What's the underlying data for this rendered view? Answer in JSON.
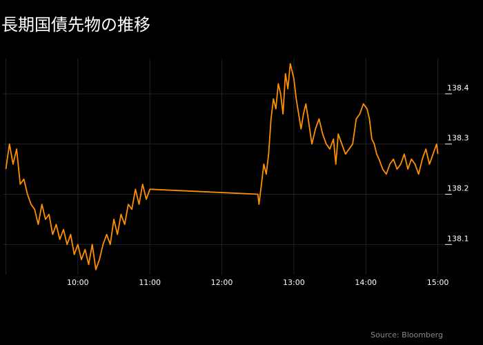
{
  "title": "長期国債先物の推移",
  "source": "Source: Bloomberg",
  "colors": {
    "background": "#000000",
    "line": "#ff9100",
    "grid": "#222222",
    "text": "#ffffff",
    "source": "#8a8a8a"
  },
  "chart_data": {
    "type": "line",
    "title": "長期国債先物の推移",
    "xlabel": "",
    "ylabel": "",
    "grid": true,
    "legend": "none",
    "x_ticks": [
      "10:00",
      "11:00",
      "12:00",
      "13:00",
      "14:00",
      "15:00"
    ],
    "y_ticks": [
      138.1,
      138.2,
      138.3,
      138.4
    ],
    "xlim": [
      "08:58",
      "15:06"
    ],
    "ylim": [
      138.04,
      138.47
    ],
    "series": [
      {
        "x": [
          "09:00",
          "09:03",
          "09:06",
          "09:09",
          "09:12",
          "09:15",
          "09:18",
          "09:21",
          "09:24",
          "09:27",
          "09:30",
          "09:33",
          "09:36",
          "09:39",
          "09:42",
          "09:45",
          "09:48",
          "09:51",
          "09:54",
          "09:57",
          "10:00",
          "10:03",
          "10:06",
          "10:09",
          "10:12",
          "10:15",
          "10:18",
          "10:21",
          "10:24",
          "10:27",
          "10:30",
          "10:33",
          "10:36",
          "10:39",
          "10:42",
          "10:45",
          "10:48",
          "10:51",
          "10:54",
          "10:57",
          "11:00",
          "11:01",
          "12:30",
          "12:31",
          "12:33",
          "12:35",
          "12:37",
          "12:39",
          "12:41",
          "12:43",
          "12:45",
          "12:47",
          "12:49",
          "12:51",
          "12:53",
          "12:55",
          "12:57",
          "13:00",
          "13:02",
          "13:04",
          "13:06",
          "13:08",
          "13:10",
          "13:12",
          "13:15",
          "13:18",
          "13:21",
          "13:24",
          "13:27",
          "13:30",
          "13:33",
          "13:35",
          "13:37",
          "13:40",
          "13:43",
          "13:46",
          "13:49",
          "13:52",
          "13:55",
          "13:58",
          "14:01",
          "14:03",
          "14:05",
          "14:07",
          "14:09",
          "14:11",
          "14:14",
          "14:17",
          "14:20",
          "14:23",
          "14:26",
          "14:29",
          "14:32",
          "14:35",
          "14:38",
          "14:41",
          "14:44",
          "14:47",
          "14:50",
          "14:53",
          "14:56",
          "14:59",
          "15:00"
        ],
        "values": [
          138.25,
          138.3,
          138.26,
          138.29,
          138.22,
          138.23,
          138.2,
          138.18,
          138.17,
          138.14,
          138.18,
          138.15,
          138.16,
          138.12,
          138.14,
          138.11,
          138.13,
          138.1,
          138.12,
          138.08,
          138.1,
          138.07,
          138.09,
          138.06,
          138.1,
          138.05,
          138.07,
          138.1,
          138.12,
          138.1,
          138.15,
          138.12,
          138.16,
          138.14,
          138.18,
          138.17,
          138.21,
          138.18,
          138.22,
          138.19,
          138.21,
          138.21,
          138.2,
          138.18,
          138.22,
          138.26,
          138.24,
          138.28,
          138.35,
          138.39,
          138.37,
          138.42,
          138.4,
          138.36,
          138.44,
          138.41,
          138.46,
          138.43,
          138.39,
          138.36,
          138.33,
          138.36,
          138.38,
          138.35,
          138.3,
          138.33,
          138.35,
          138.32,
          138.3,
          138.29,
          138.31,
          138.26,
          138.32,
          138.3,
          138.28,
          138.29,
          138.3,
          138.35,
          138.36,
          138.38,
          138.37,
          138.35,
          138.31,
          138.3,
          138.28,
          138.27,
          138.25,
          138.24,
          138.26,
          138.27,
          138.25,
          138.26,
          138.28,
          138.25,
          138.27,
          138.26,
          138.24,
          138.27,
          138.29,
          138.26,
          138.28,
          138.3,
          138.28
        ]
      }
    ]
  }
}
